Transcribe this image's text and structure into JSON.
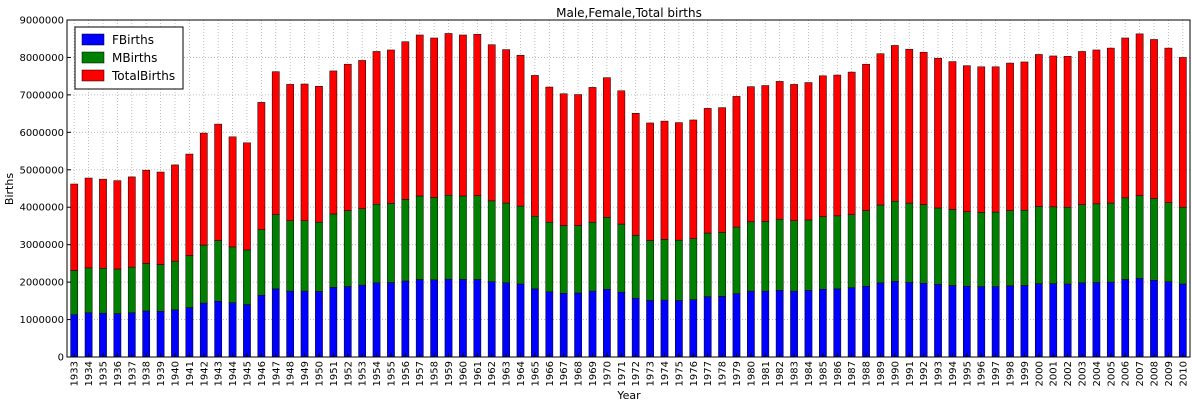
{
  "chart_data": {
    "type": "bar",
    "stacked": true,
    "title": "Male,Female,Total births",
    "xlabel": "Year",
    "ylabel": "Births",
    "ylim": [
      0,
      9000000
    ],
    "yticks": [
      0,
      1000000,
      2000000,
      3000000,
      4000000,
      5000000,
      6000000,
      7000000,
      8000000,
      9000000
    ],
    "grid": true,
    "legend_position": "top-left",
    "categories": [
      "1933",
      "1934",
      "1935",
      "1936",
      "1937",
      "1938",
      "1939",
      "1940",
      "1941",
      "1942",
      "1943",
      "1944",
      "1945",
      "1946",
      "1947",
      "1948",
      "1949",
      "1950",
      "1951",
      "1952",
      "1953",
      "1954",
      "1955",
      "1956",
      "1957",
      "1958",
      "1959",
      "1960",
      "1961",
      "1962",
      "1963",
      "1964",
      "1965",
      "1966",
      "1967",
      "1968",
      "1969",
      "1970",
      "1971",
      "1972",
      "1973",
      "1974",
      "1975",
      "1976",
      "1977",
      "1978",
      "1979",
      "1980",
      "1981",
      "1982",
      "1983",
      "1984",
      "1985",
      "1986",
      "1987",
      "1988",
      "1989",
      "1990",
      "1991",
      "1992",
      "1993",
      "1994",
      "1995",
      "1996",
      "1997",
      "1998",
      "1999",
      "2000",
      "2001",
      "2002",
      "2003",
      "2004",
      "2005",
      "2006",
      "2007",
      "2008",
      "2009",
      "2010"
    ],
    "series": [
      {
        "name": "FBirths",
        "color": "#0000ff",
        "values": [
          1130000,
          1180000,
          1170000,
          1160000,
          1180000,
          1230000,
          1220000,
          1260000,
          1320000,
          1440000,
          1490000,
          1450000,
          1400000,
          1650000,
          1820000,
          1760000,
          1760000,
          1750000,
          1860000,
          1880000,
          1920000,
          1980000,
          1990000,
          2030000,
          2070000,
          2060000,
          2080000,
          2070000,
          2070000,
          2010000,
          1980000,
          1950000,
          1820000,
          1740000,
          1700000,
          1710000,
          1760000,
          1810000,
          1730000,
          1570000,
          1510000,
          1520000,
          1510000,
          1530000,
          1610000,
          1620000,
          1690000,
          1760000,
          1760000,
          1780000,
          1760000,
          1780000,
          1810000,
          1820000,
          1850000,
          1890000,
          1980000,
          2020000,
          1990000,
          1970000,
          1940000,
          1910000,
          1890000,
          1880000,
          1880000,
          1900000,
          1910000,
          1960000,
          1960000,
          1950000,
          1980000,
          1990000,
          2000000,
          2070000,
          2100000,
          2050000,
          2010000,
          1950000
        ]
      },
      {
        "name": "MBirths",
        "color": "#008000",
        "values": [
          1180000,
          1200000,
          1200000,
          1190000,
          1220000,
          1270000,
          1250000,
          1300000,
          1390000,
          1550000,
          1620000,
          1490000,
          1460000,
          1750000,
          1980000,
          1880000,
          1880000,
          1850000,
          1960000,
          2030000,
          2040000,
          2100000,
          2110000,
          2180000,
          2230000,
          2200000,
          2240000,
          2230000,
          2240000,
          2160000,
          2130000,
          2080000,
          1940000,
          1860000,
          1810000,
          1800000,
          1840000,
          1920000,
          1820000,
          1680000,
          1600000,
          1620000,
          1610000,
          1630000,
          1700000,
          1710000,
          1780000,
          1850000,
          1860000,
          1900000,
          1880000,
          1880000,
          1940000,
          1950000,
          1950000,
          2020000,
          2080000,
          2140000,
          2120000,
          2100000,
          2040000,
          2030000,
          1990000,
          1980000,
          1990000,
          2010000,
          2010000,
          2060000,
          2050000,
          2050000,
          2090000,
          2100000,
          2110000,
          2180000,
          2210000,
          2180000,
          2110000,
          2050000
        ]
      },
      {
        "name": "TotalBirths",
        "color": "#ff0000",
        "values": [
          2310000,
          2400000,
          2380000,
          2360000,
          2410000,
          2490000,
          2470000,
          2570000,
          2710000,
          2990000,
          3110000,
          2940000,
          2860000,
          3400000,
          3820000,
          3640000,
          3650000,
          3630000,
          3820000,
          3910000,
          3960000,
          4080000,
          4100000,
          4210000,
          4300000,
          4260000,
          4320000,
          4300000,
          4310000,
          4170000,
          4100000,
          4030000,
          3760000,
          3610000,
          3520000,
          3500000,
          3600000,
          3730000,
          3560000,
          3260000,
          3140000,
          3160000,
          3140000,
          3170000,
          3330000,
          3330000,
          3490000,
          3610000,
          3630000,
          3680000,
          3640000,
          3670000,
          3760000,
          3760000,
          3810000,
          3910000,
          4040000,
          4160000,
          4110000,
          4070000,
          4000000,
          3950000,
          3900000,
          3890000,
          3880000,
          3940000,
          3960000,
          4060000,
          4030000,
          4030000,
          4090000,
          4110000,
          4140000,
          4270000,
          4320000,
          4250000,
          4130000,
          4000000
        ]
      }
    ]
  }
}
